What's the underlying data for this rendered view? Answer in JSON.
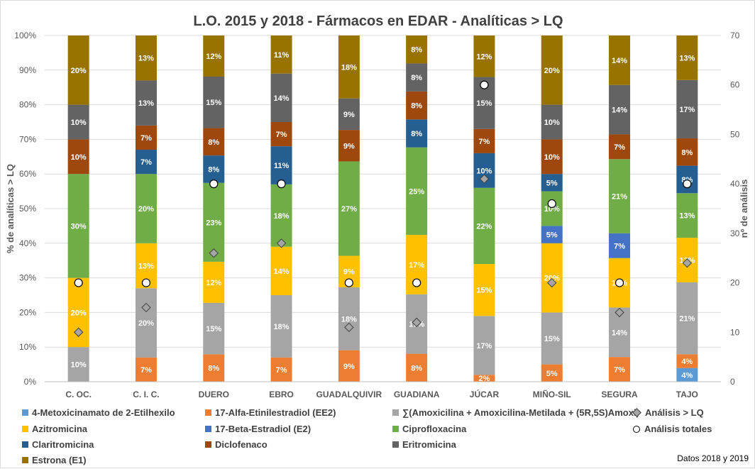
{
  "chart_data": {
    "type": "bar",
    "stacked": "percent",
    "title": "L.O. 2015 y 2018 - Fármacos en EDAR - Analíticas > LQ",
    "ylabel": "% de analíticas > LQ",
    "y2label": "nº de análisis",
    "ylim": [
      0,
      100
    ],
    "y2lim": [
      0,
      70
    ],
    "yticks": [
      "0%",
      "10%",
      "20%",
      "30%",
      "40%",
      "50%",
      "60%",
      "70%",
      "80%",
      "90%",
      "100%"
    ],
    "y2ticks": [
      "0",
      "10",
      "20",
      "30",
      "40",
      "50",
      "60",
      "70"
    ],
    "grid": true,
    "legend_placement": "bottom",
    "categories": [
      "C. OC.",
      "C. I. C.",
      "DUERO",
      "EBRO",
      "GUADALQUIVIR",
      "GUADIANA",
      "JÚCAR",
      "MIÑO-SIL",
      "SEGURA",
      "TAJO"
    ],
    "series": [
      {
        "name": "4-Metoxicinamato de 2-Etilhexilo",
        "color": "#5b9bd5",
        "values": [
          0,
          0,
          0,
          0,
          0,
          0,
          0,
          0,
          0,
          4
        ]
      },
      {
        "name": "17-Alfa-Etinilestradiol (EE2)",
        "color": "#ed7d31",
        "values": [
          0,
          7,
          8,
          7,
          9,
          8,
          2,
          5,
          7,
          4
        ]
      },
      {
        "name": "∑(Amoxicilina + Amoxicilina-Metilada + (5R,5S)Amoxi)",
        "color": "#a5a5a5",
        "values": [
          10,
          20,
          15,
          18,
          18,
          17,
          17,
          15,
          14,
          21
        ]
      },
      {
        "name": "Azitromicina",
        "color": "#ffc000",
        "values": [
          20,
          13,
          12,
          14,
          9,
          17,
          15,
          20,
          14,
          13
        ]
      },
      {
        "name": "17-Beta-Estradiol (E2)",
        "color": "#4472c4",
        "values": [
          0,
          0,
          0,
          0,
          0,
          0,
          0,
          5,
          7,
          0
        ]
      },
      {
        "name": "Ciprofloxacina",
        "color": "#70ad47",
        "values": [
          30,
          20,
          23,
          18,
          27,
          25,
          22,
          10,
          21,
          13
        ]
      },
      {
        "name": "Claritromicina",
        "color": "#255e91",
        "values": [
          0,
          7,
          8,
          11,
          0,
          8,
          10,
          5,
          0,
          8
        ]
      },
      {
        "name": "Diclofenaco",
        "color": "#9e480e",
        "values": [
          10,
          7,
          8,
          7,
          9,
          8,
          7,
          10,
          7,
          8
        ]
      },
      {
        "name": "Eritromicina",
        "color": "#636363",
        "values": [
          10,
          13,
          15,
          14,
          9,
          8,
          15,
          10,
          14,
          17
        ]
      },
      {
        "name": "Estrona (E1)",
        "color": "#997300",
        "values": [
          20,
          13,
          12,
          11,
          18,
          8,
          12,
          20,
          14,
          13
        ]
      }
    ],
    "markers": [
      {
        "name": "Análisis > LQ",
        "shape": "diamond",
        "axis": "secondary",
        "values": [
          10,
          15,
          26,
          28,
          11,
          12,
          41,
          20,
          14,
          24
        ]
      },
      {
        "name": "Análisis totales",
        "shape": "circle",
        "axis": "secondary",
        "values": [
          20,
          20,
          40,
          40,
          20,
          20,
          60,
          36,
          20,
          40
        ]
      }
    ],
    "note": "Datos 2018 y 2019"
  }
}
